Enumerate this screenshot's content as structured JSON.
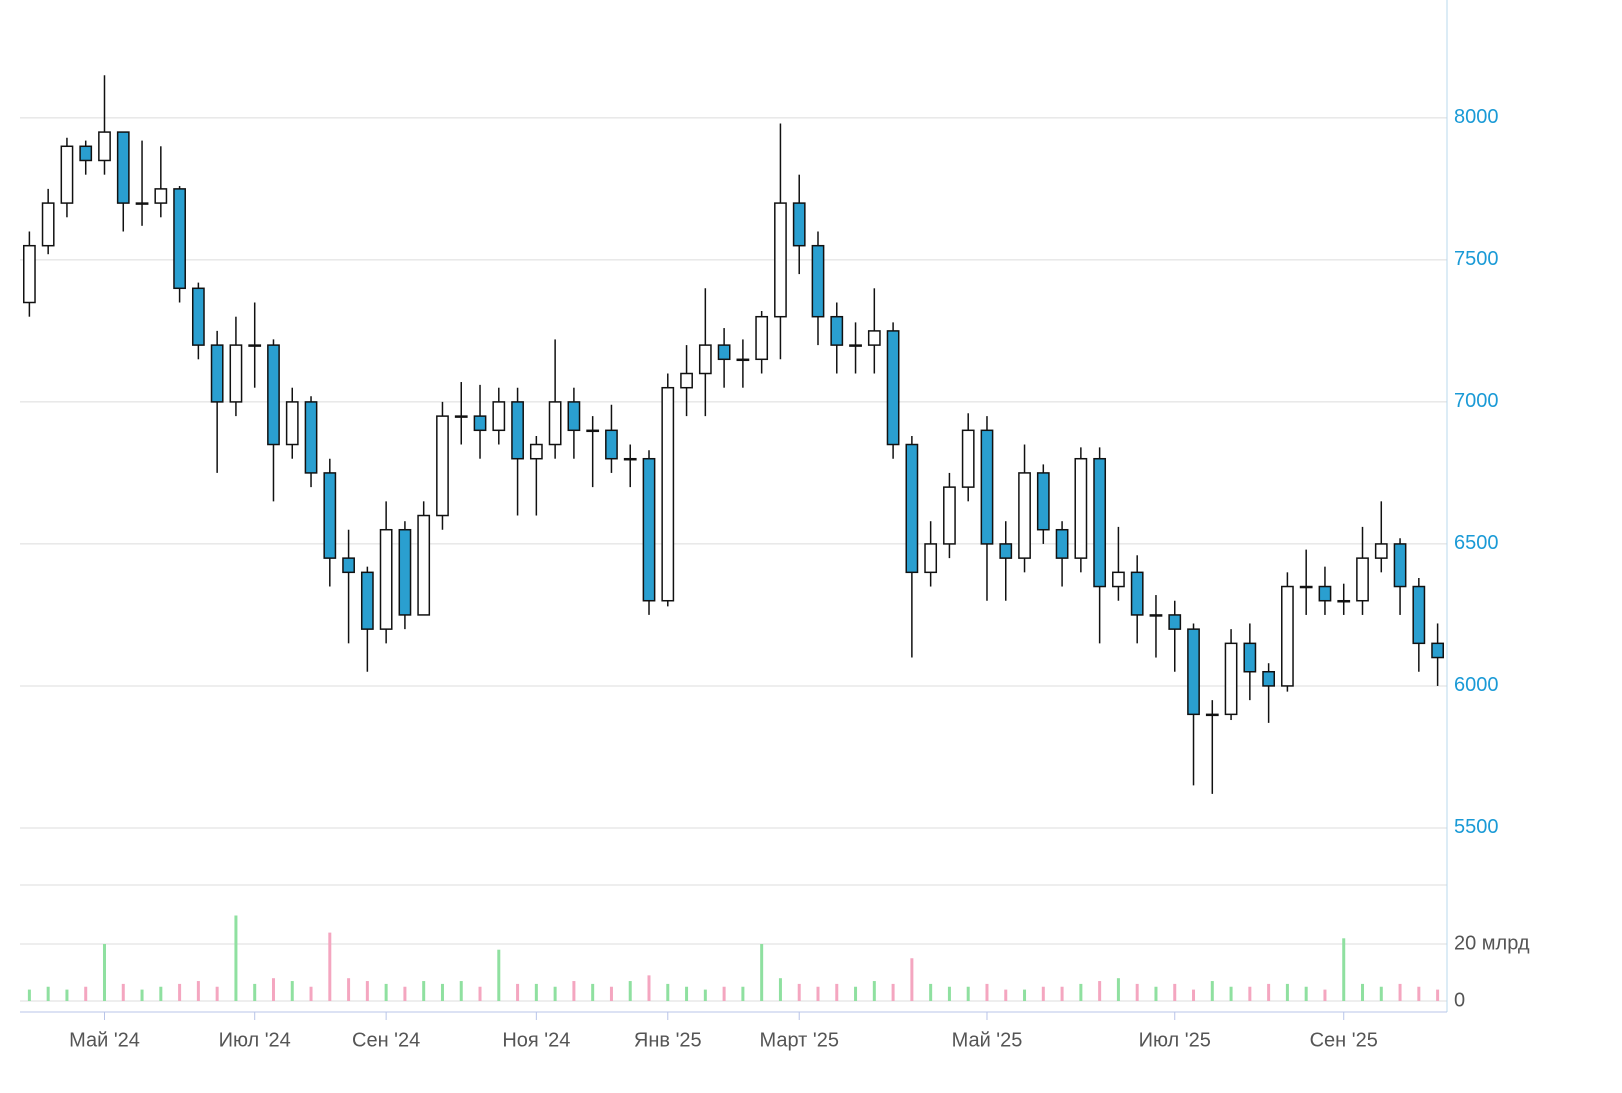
{
  "chart_data": {
    "type": "candlestick",
    "categories": [
      null,
      null,
      null,
      null,
      "Май '24",
      null,
      null,
      null,
      null,
      null,
      null,
      null,
      "Июл '24",
      null,
      null,
      null,
      null,
      null,
      null,
      "Сен '24",
      null,
      null,
      null,
      null,
      null,
      null,
      null,
      "Ноя '24",
      null,
      null,
      null,
      null,
      null,
      null,
      "Янв '25",
      null,
      null,
      null,
      null,
      null,
      null,
      "Март '25",
      null,
      null,
      null,
      null,
      null,
      null,
      null,
      null,
      null,
      "Май '25",
      null,
      null,
      null,
      null,
      null,
      null,
      null,
      null,
      null,
      "Июл '25",
      null,
      null,
      null,
      null,
      null,
      null,
      null,
      null,
      "Сен '25",
      null,
      null,
      null,
      null,
      null
    ],
    "open": [
      7350,
      7550,
      7700,
      7900,
      7850,
      7950,
      7700,
      7700,
      7750,
      7400,
      7200,
      7000,
      7200,
      7200,
      6850,
      7000,
      6750,
      6450,
      6400,
      6200,
      6550,
      6250,
      6600,
      6950,
      6950,
      6900,
      7000,
      6800,
      6850,
      7000,
      6900,
      6900,
      6800,
      6800,
      6300,
      7050,
      7100,
      7200,
      7150,
      7150,
      7300,
      7700,
      7550,
      7300,
      7200,
      7200,
      7250,
      6850,
      6400,
      6500,
      6700,
      6900,
      6500,
      6450,
      6750,
      6550,
      6450,
      6800,
      6350,
      6400,
      6250,
      6250,
      6200,
      5900,
      5900,
      6150,
      6050,
      6000,
      6350,
      6350,
      6300,
      6300,
      6450,
      6500,
      6350,
      6150
    ],
    "high": [
      7600,
      7750,
      7930,
      7920,
      8150,
      7950,
      7920,
      7900,
      7760,
      7420,
      7250,
      7300,
      7350,
      7220,
      7050,
      7020,
      6800,
      6550,
      6420,
      6650,
      6580,
      6650,
      7000,
      7070,
      7060,
      7050,
      7050,
      6880,
      7220,
      7050,
      6950,
      6990,
      6850,
      6830,
      7100,
      7200,
      7400,
      7260,
      7220,
      7320,
      7980,
      7800,
      7600,
      7350,
      7280,
      7400,
      7280,
      6880,
      6580,
      6750,
      6960,
      6950,
      6580,
      6850,
      6780,
      6580,
      6840,
      6840,
      6560,
      6460,
      6320,
      6300,
      6220,
      5950,
      6200,
      6220,
      6080,
      6400,
      6480,
      6420,
      6360,
      6560,
      6650,
      6520,
      6380,
      6220
    ],
    "low": [
      7300,
      7520,
      7650,
      7800,
      7800,
      7600,
      7620,
      7650,
      7350,
      7150,
      6750,
      6950,
      7050,
      6650,
      6800,
      6700,
      6350,
      6150,
      6050,
      6150,
      6200,
      6250,
      6550,
      6850,
      6800,
      6850,
      6600,
      6600,
      6800,
      6800,
      6700,
      6750,
      6700,
      6250,
      6280,
      6950,
      6950,
      7050,
      7050,
      7100,
      7150,
      7450,
      7200,
      7100,
      7100,
      7100,
      6800,
      6100,
      6350,
      6450,
      6650,
      6300,
      6300,
      6400,
      6500,
      6350,
      6400,
      6150,
      6300,
      6150,
      6100,
      6050,
      5650,
      5620,
      5880,
      5950,
      5870,
      5980,
      6250,
      6250,
      6250,
      6250,
      6400,
      6250,
      6050,
      6000
    ],
    "close": [
      7550,
      7700,
      7900,
      7850,
      7950,
      7700,
      7700,
      7750,
      7400,
      7200,
      7000,
      7200,
      7200,
      6850,
      7000,
      6750,
      6450,
      6400,
      6200,
      6550,
      6250,
      6600,
      6950,
      6950,
      6900,
      7000,
      6800,
      6850,
      7000,
      6900,
      6900,
      6800,
      6800,
      6300,
      7050,
      7100,
      7200,
      7150,
      7150,
      7300,
      7700,
      7550,
      7300,
      7200,
      7200,
      7250,
      6850,
      6400,
      6500,
      6700,
      6900,
      6500,
      6450,
      6750,
      6550,
      6450,
      6800,
      6350,
      6400,
      6250,
      6250,
      6200,
      5900,
      5900,
      6150,
      6050,
      6000,
      6350,
      6350,
      6300,
      6300,
      6450,
      6500,
      6350,
      6150,
      6100
    ],
    "volume": [
      4,
      5,
      4,
      5,
      20,
      6,
      4,
      5,
      6,
      7,
      5,
      30,
      6,
      8,
      7,
      5,
      24,
      8,
      7,
      6,
      5,
      7,
      6,
      7,
      5,
      18,
      6,
      6,
      5,
      7,
      6,
      5,
      7,
      9,
      6,
      5,
      4,
      5,
      5,
      20,
      8,
      6,
      5,
      6,
      5,
      7,
      6,
      15,
      6,
      5,
      5,
      6,
      4,
      4,
      5,
      5,
      6,
      7,
      8,
      6,
      5,
      6,
      4,
      7,
      5,
      5,
      6,
      6,
      5,
      4,
      22,
      6,
      5,
      6,
      5,
      4
    ],
    "up_color": "#ffffff",
    "down_color": "#2a9fd0",
    "volume_up_color": "#8fe0a0",
    "volume_down_color": "#f4a6c0",
    "ylim": [
      5352,
      8415
    ],
    "yticks": [
      5500,
      6000,
      6500,
      7000,
      7500,
      8000
    ],
    "vlim": [
      0,
      40
    ],
    "vticks": [
      0,
      {
        "value": 20,
        "label": "20 млрд"
      }
    ],
    "grid": true
  }
}
